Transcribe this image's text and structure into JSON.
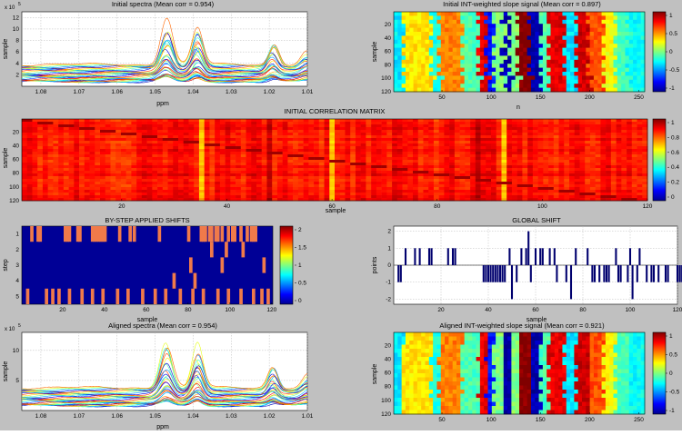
{
  "figure": {
    "background": "#c0c0c0"
  },
  "chart_data": [
    {
      "id": "initial_spectra",
      "type": "line",
      "title": "Initial spectra (Mean corr = 0.954)",
      "xlabel": "ppm",
      "ylabel": "sample",
      "y_exponent": "x 10",
      "y_exponent_power": "5",
      "xlim": [
        1.085,
        1.01
      ],
      "ylim": [
        0,
        13
      ],
      "x_ticks": [
        "1.08",
        "1.07",
        "1.06",
        "1.05",
        "1.04",
        "1.03",
        "1.02",
        "1.01"
      ],
      "y_ticks": [
        "2",
        "4",
        "6",
        "8",
        "10",
        "12"
      ],
      "peaks_ppm": [
        1.047,
        1.039,
        1.019,
        1.01
      ],
      "peak_max_values": [
        12.2,
        12.6,
        8.6,
        6.3
      ],
      "baseline_range": [
        0.8,
        3.8
      ],
      "grid": true
    },
    {
      "id": "initial_slope",
      "type": "heatmap",
      "title": "Initial INT-weighted slope signal (Mean corr = 0.897)",
      "xlabel": "n",
      "ylabel": "sample",
      "xlim": [
        1,
        256
      ],
      "ylim": [
        1,
        120
      ],
      "x_ticks": [
        "50",
        "100",
        "150",
        "200",
        "250"
      ],
      "y_ticks": [
        "20",
        "40",
        "60",
        "80",
        "100",
        "120"
      ],
      "colorbar_ticks": [
        "1",
        "0.5",
        "0",
        "-0.5",
        "-1"
      ],
      "clim": [
        -1,
        1
      ]
    },
    {
      "id": "initial_corr",
      "type": "heatmap",
      "title": "INITIAL CORRELATION MATRIX",
      "xlabel": "sample",
      "ylabel": "sample",
      "xlim": [
        1,
        120
      ],
      "ylim": [
        1,
        120
      ],
      "x_ticks": [
        "20",
        "40",
        "60",
        "80",
        "100",
        "120"
      ],
      "y_ticks": [
        "20",
        "40",
        "60",
        "80",
        "100",
        "120"
      ],
      "colorbar_ticks": [
        "1",
        "0.8",
        "0.6",
        "0.4",
        "0.2",
        "0"
      ],
      "clim": [
        0,
        1
      ],
      "bright_columns": [
        35,
        60,
        93
      ],
      "dark_columns": [
        48,
        88
      ]
    },
    {
      "id": "by_step_shifts",
      "type": "heatmap",
      "title": "BY-STEP APPLIED SHIFTS",
      "xlabel": "sample",
      "ylabel": "step",
      "xlim": [
        1,
        120
      ],
      "ylim": [
        1,
        5
      ],
      "x_ticks": [
        "20",
        "40",
        "60",
        "80",
        "100",
        "120"
      ],
      "y_ticks": [
        "1",
        "2",
        "3",
        "4",
        "5"
      ],
      "colorbar_ticks": [
        "2",
        "1.5",
        "1",
        "0.5",
        "0"
      ],
      "clim": [
        0,
        2
      ],
      "shift_value": 2,
      "rows": [
        [
          5,
          8,
          9,
          21,
          22,
          23,
          27,
          28,
          34,
          35,
          36,
          37,
          38,
          39,
          40,
          47,
          52,
          54,
          66,
          80,
          86,
          87,
          88,
          90,
          91,
          93,
          94,
          96,
          99,
          101,
          102,
          105,
          108,
          110,
          111,
          112
        ],
        [
          91,
          98,
          106
        ],
        [
          81,
          96,
          116
        ],
        [
          73,
          83
        ],
        [
          3,
          12,
          15,
          18,
          23,
          29,
          34,
          39,
          46,
          51,
          58,
          64,
          69,
          76,
          82,
          87,
          94,
          99,
          105,
          111,
          115,
          118
        ]
      ]
    },
    {
      "id": "global_shift",
      "type": "bar",
      "title": "GLOBAL SHIFT",
      "xlabel": "sample",
      "ylabel": "points",
      "xlim": [
        0,
        120
      ],
      "ylim": [
        -2.3,
        2.3
      ],
      "x_ticks": [
        "20",
        "40",
        "60",
        "80",
        "100",
        "120"
      ],
      "y_ticks": [
        "-2",
        "-1",
        "0",
        "1",
        "2"
      ],
      "grid": true,
      "values": [
        0,
        -1,
        -1,
        0,
        1,
        0,
        0,
        0,
        1,
        0,
        1,
        0,
        0,
        0,
        1,
        1,
        0,
        0,
        0,
        0,
        0,
        0,
        1,
        0,
        1,
        1,
        0,
        0,
        0,
        0,
        0,
        0,
        0,
        0,
        0,
        0,
        0,
        -1,
        -1,
        -1,
        -1,
        -1,
        -1,
        -1,
        -1,
        -1,
        -1,
        0,
        1,
        -2,
        0,
        -1,
        0,
        1,
        0,
        1,
        2,
        -1,
        0,
        1,
        0,
        1,
        1,
        0,
        0,
        1,
        0,
        1,
        -1,
        0,
        0,
        0,
        -1,
        0,
        -2,
        0,
        1,
        0,
        0,
        0,
        0,
        1,
        0,
        -1,
        -1,
        0,
        -1,
        0,
        -1,
        -1,
        -1,
        0,
        0,
        1,
        -1,
        -1,
        0,
        0,
        -1,
        1,
        -2,
        0,
        -1,
        1,
        0,
        0,
        -1,
        0,
        -1,
        -1,
        0,
        -1,
        0,
        0,
        -1,
        -1,
        0,
        0,
        0,
        -1,
        -1,
        -1
      ]
    },
    {
      "id": "aligned_spectra",
      "type": "line",
      "title": "Aligned spectra (Mean corr = 0.954)",
      "xlabel": "ppm",
      "ylabel": "sample",
      "y_exponent": "x 10",
      "y_exponent_power": "5",
      "xlim": [
        1.085,
        1.01
      ],
      "ylim": [
        0,
        13
      ],
      "x_ticks": [
        "1.08",
        "1.07",
        "1.06",
        "1.05",
        "1.04",
        "1.03",
        "1.02",
        "1.01"
      ],
      "y_ticks": [
        "5",
        "10"
      ],
      "peaks_ppm": [
        1.047,
        1.039,
        1.019,
        1.01
      ],
      "peak_max_values": [
        12.1,
        12.6,
        8.5,
        6.2
      ],
      "baseline_range": [
        0.8,
        3.8
      ],
      "grid": true
    },
    {
      "id": "aligned_slope",
      "type": "heatmap",
      "title": "Aligned INT-weighted slope signal (Mean corr = 0.921)",
      "xlabel": "n",
      "ylabel": "sample",
      "xlim": [
        1,
        256
      ],
      "ylim": [
        1,
        120
      ],
      "x_ticks": [
        "50",
        "100",
        "150",
        "200",
        "250"
      ],
      "y_ticks": [
        "20",
        "40",
        "60",
        "80",
        "100",
        "120"
      ],
      "colorbar_ticks": [
        "1",
        "0.5",
        "0",
        "-0.5",
        "-1"
      ],
      "clim": [
        -1,
        1
      ]
    }
  ]
}
